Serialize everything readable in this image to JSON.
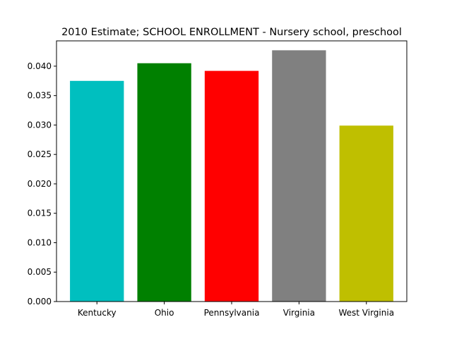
{
  "chart_data": {
    "type": "bar",
    "title": "2010 Estimate; SCHOOL ENROLLMENT - Nursery school, preschool",
    "xlabel": "",
    "ylabel": "",
    "categories": [
      "Kentucky",
      "Ohio",
      "Pennsylvania",
      "Virginia",
      "West Virginia"
    ],
    "values": [
      0.0375,
      0.0405,
      0.0392,
      0.0427,
      0.0299
    ],
    "colors": [
      "#00bfbf",
      "#008000",
      "#ff0000",
      "#808080",
      "#bfbf00"
    ],
    "ylim": [
      0,
      0.0443
    ],
    "yticks": [
      0.0,
      0.005,
      0.01,
      0.015,
      0.02,
      0.025,
      0.03,
      0.035,
      0.04
    ],
    "ytick_labels": [
      "0.000",
      "0.005",
      "0.010",
      "0.015",
      "0.020",
      "0.025",
      "0.030",
      "0.035",
      "0.040"
    ],
    "grid": false,
    "legend": "none"
  }
}
